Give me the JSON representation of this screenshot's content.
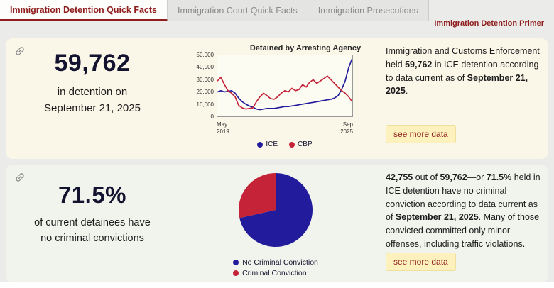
{
  "page": {
    "tabs": [
      {
        "label": "Immigration Detention Quick Facts",
        "active": true
      },
      {
        "label": "Immigration Court Quick Facts",
        "active": false
      },
      {
        "label": "Immigration Prosecutions",
        "active": false
      }
    ],
    "primer_link": "Immigration Detention Primer"
  },
  "colors": {
    "accent_red": "#8f1d1d",
    "ice_blue": "#221c9c",
    "cbp_red": "#c42338",
    "card1_bg": "#faf6e8",
    "card2_bg": "#f1f3ed",
    "button_bg": "#fdf2bd"
  },
  "card1": {
    "stat_value": "59,762",
    "stat_caption_line1": "in detention on",
    "stat_caption_line2": "September 21, 2025",
    "paragraph": [
      {
        "t": "Immigration and Customs Enforcement held "
      },
      {
        "t": "59,762",
        "b": true
      },
      {
        "t": " in ICE detention according to data current as of "
      },
      {
        "t": "September 21, 2025",
        "b": true
      },
      {
        "t": "."
      }
    ],
    "button_label": "see more data"
  },
  "card2": {
    "stat_value": "71.5%",
    "stat_caption": "of current detainees have no criminal convictions",
    "paragraph": [
      {
        "t": "42,755",
        "b": true
      },
      {
        "t": " out of "
      },
      {
        "t": "59,762",
        "b": true
      },
      {
        "t": "—or "
      },
      {
        "t": "71.5%",
        "b": true
      },
      {
        "t": " held in ICE detention have no criminal conviction according to data current as of "
      },
      {
        "t": "September 21, 2025",
        "b": true
      },
      {
        "t": ". Many of those convicted committed only minor offenses, including traffic violations."
      }
    ],
    "button_label": "see more data"
  },
  "chart_data": [
    {
      "type": "line",
      "title": "Detained by Arresting Agency",
      "x_start": "May\n2019",
      "x_end": "Sep\n2025",
      "x_range": [
        "May 2019",
        "Sep 2025"
      ],
      "ylim": [
        0,
        50000
      ],
      "y_tick_labels": [
        "50,000",
        "40,000",
        "30,000",
        "20,000",
        "10,000",
        "0"
      ],
      "grid": false,
      "legend_position": "bottom",
      "series": [
        {
          "name": "ICE",
          "color": "#221c9c",
          "values": [
            20000,
            21000,
            20000,
            20500,
            21000,
            19000,
            15000,
            12000,
            10000,
            8500,
            7500,
            6000,
            5500,
            6000,
            6500,
            6500,
            6500,
            7000,
            7500,
            8000,
            8000,
            8500,
            9000,
            9500,
            10000,
            10500,
            11000,
            11500,
            12000,
            12500,
            13000,
            13500,
            14000,
            15000,
            17000,
            22000,
            29000,
            40000,
            47500
          ]
        },
        {
          "name": "CBP",
          "color": "#c42338",
          "values": [
            29000,
            32000,
            26000,
            21000,
            19000,
            16000,
            9000,
            7000,
            6000,
            6500,
            7000,
            12000,
            16000,
            19000,
            17000,
            14500,
            14000,
            16000,
            19000,
            21000,
            20000,
            23000,
            21000,
            22000,
            26000,
            24000,
            28000,
            30000,
            27000,
            29000,
            31000,
            33000,
            30000,
            27000,
            24000,
            21000,
            19000,
            16000,
            12000
          ]
        }
      ]
    },
    {
      "type": "pie",
      "legend_position": "bottom",
      "slices": [
        {
          "label": "No Criminal Conviction",
          "value": 71.5,
          "color": "#221c9c"
        },
        {
          "label": "Criminal Conviction",
          "value": 28.5,
          "color": "#c42338"
        }
      ],
      "unit": "%"
    }
  ]
}
